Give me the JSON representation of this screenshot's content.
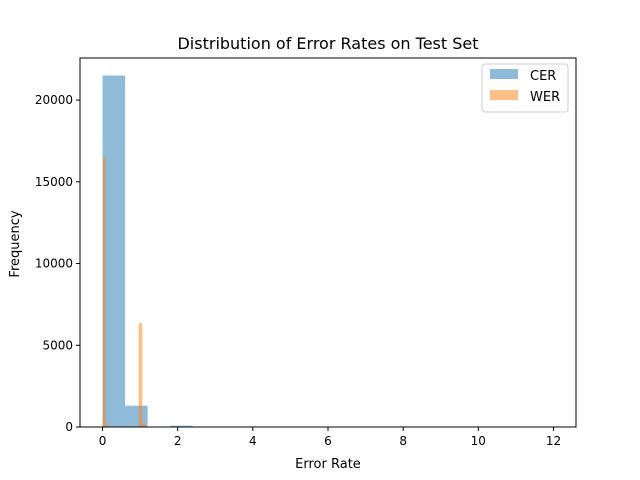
{
  "chart_data": {
    "type": "histogram",
    "title": "Distribution of Error Rates on Test Set",
    "xlabel": "Error Rate",
    "ylabel": "Frequency",
    "xlim": [
      -0.6,
      12.6
    ],
    "ylim": [
      0,
      22575
    ],
    "xticks": [
      0,
      2,
      4,
      6,
      8,
      10,
      12
    ],
    "yticks": [
      0,
      5000,
      10000,
      15000,
      20000
    ],
    "legend": {
      "position": "top-right"
    },
    "series": [
      {
        "name": "CER",
        "color": "#1f77b4",
        "alpha": 0.5,
        "bins": [
          {
            "x0": 0.0,
            "x1": 0.6,
            "count": 21500
          },
          {
            "x0": 0.6,
            "x1": 1.2,
            "count": 1300
          },
          {
            "x0": 1.2,
            "x1": 1.8,
            "count": 30
          },
          {
            "x0": 1.8,
            "x1": 2.4,
            "count": 80
          },
          {
            "x0": 2.4,
            "x1": 3.0,
            "count": 10
          }
        ]
      },
      {
        "name": "WER",
        "color": "#ff7f0e",
        "alpha": 0.5,
        "bins": [
          {
            "x0": 0.0,
            "x1": 0.08,
            "count": 16500
          },
          {
            "x0": 0.08,
            "x1": 0.16,
            "count": 200
          },
          {
            "x0": 0.96,
            "x1": 1.06,
            "count": 6350
          },
          {
            "x0": 1.06,
            "x1": 1.16,
            "count": 200
          }
        ]
      }
    ]
  }
}
